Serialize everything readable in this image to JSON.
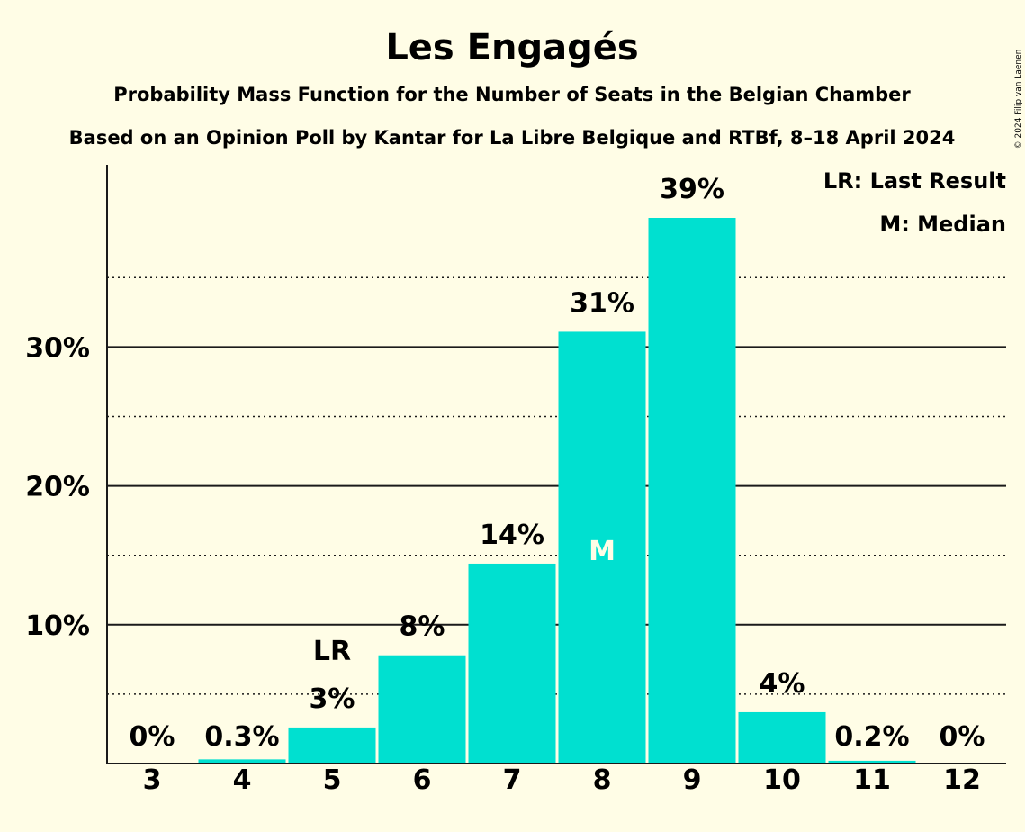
{
  "chart_data": {
    "type": "bar",
    "title": "Les Engagés",
    "subtitle_lines": [
      "Probability Mass Function for the Number of Seats in the Belgian Chamber",
      "Based on an Opinion Poll by Kantar for La Libre Belgique and RTBf, 8–18 April 2024"
    ],
    "categories": [
      "3",
      "4",
      "5",
      "6",
      "7",
      "8",
      "9",
      "10",
      "11",
      "12"
    ],
    "values": [
      0,
      0.3,
      2.6,
      7.8,
      14.4,
      31.1,
      39.3,
      3.7,
      0.2,
      0
    ],
    "value_labels": [
      "0%",
      "0.3%",
      "3%",
      "8%",
      "14%",
      "31%",
      "39%",
      "4%",
      "0.2%",
      "0%"
    ],
    "ylim": [
      0,
      43
    ],
    "y_ticks_major": [
      10,
      20,
      30
    ],
    "y_tick_labels": [
      "10%",
      "20%",
      "30%"
    ],
    "y_ticks_minor": [
      5,
      15,
      25,
      35
    ],
    "markers": {
      "last_result": {
        "category": "5",
        "text": "LR"
      },
      "median": {
        "category": "8",
        "text": "M"
      }
    },
    "legend": [
      "LR: Last Result",
      "M: Median"
    ],
    "legend_position": "top-right",
    "bar_color": "#00E0D0",
    "copyright": "© 2024 Filip van Laenen"
  }
}
